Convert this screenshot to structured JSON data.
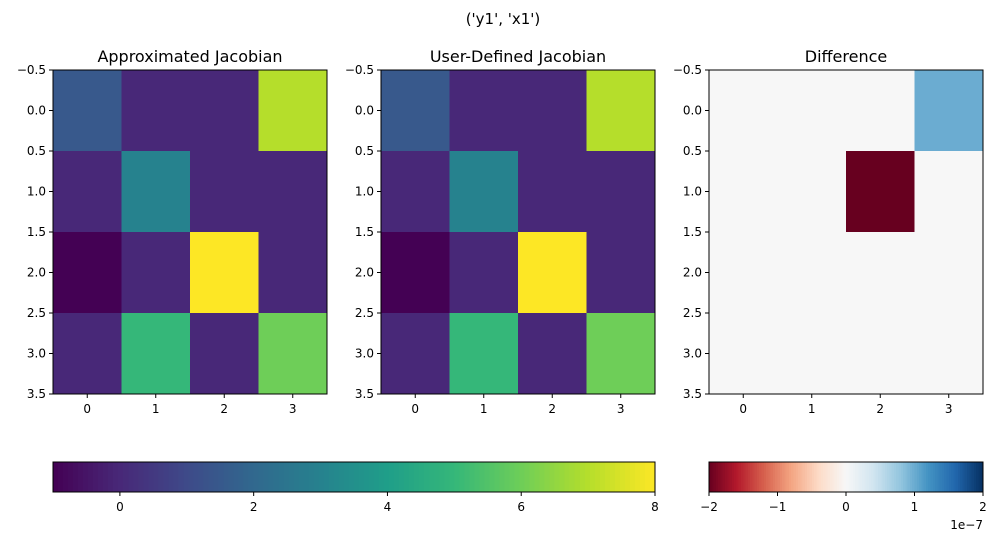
{
  "figure": {
    "suptitle": "('y1', 'x1')"
  },
  "chart_data": [
    {
      "type": "heatmap",
      "title": "Approximated Jacobian",
      "x_ticks": [
        0,
        1,
        2,
        3
      ],
      "y_ticks": [
        -0.5,
        0.0,
        0.5,
        1.0,
        1.5,
        2.0,
        2.5,
        3.0,
        3.5
      ],
      "xlim": [
        -0.5,
        3.5
      ],
      "ylim": [
        3.5,
        -0.5
      ],
      "colormap": "viridis",
      "vmin": -1,
      "vmax": 8,
      "values": [
        [
          1.5,
          0,
          0,
          7.0
        ],
        [
          0,
          3.0,
          0,
          0
        ],
        [
          -1.0,
          0,
          8.0,
          0
        ],
        [
          0,
          5.0,
          0,
          6.0
        ]
      ]
    },
    {
      "type": "heatmap",
      "title": "User-Defined Jacobian",
      "x_ticks": [
        0,
        1,
        2,
        3
      ],
      "y_ticks": [
        -0.5,
        0.0,
        0.5,
        1.0,
        1.5,
        2.0,
        2.5,
        3.0,
        3.5
      ],
      "xlim": [
        -0.5,
        3.5
      ],
      "ylim": [
        3.5,
        -0.5
      ],
      "colormap": "viridis",
      "vmin": -1,
      "vmax": 8,
      "values": [
        [
          1.5,
          0,
          0,
          7.0
        ],
        [
          0,
          3.0,
          0,
          0
        ],
        [
          -1.0,
          0,
          8.0,
          0
        ],
        [
          0,
          5.0,
          0,
          6.0
        ]
      ]
    },
    {
      "type": "heatmap",
      "title": "Difference",
      "x_ticks": [
        0,
        1,
        2,
        3
      ],
      "y_ticks": [
        -0.5,
        0.0,
        0.5,
        1.0,
        1.5,
        2.0,
        2.5,
        3.0,
        3.5
      ],
      "xlim": [
        -0.5,
        3.5
      ],
      "ylim": [
        3.5,
        -0.5
      ],
      "colormap": "RdBu",
      "vmin": -2e-07,
      "vmax": 2e-07,
      "values": [
        [
          0,
          0,
          0,
          1e-07
        ],
        [
          0,
          0,
          -2e-07,
          0
        ],
        [
          0,
          0,
          0,
          0
        ],
        [
          0,
          0,
          0,
          0
        ]
      ]
    }
  ],
  "colorbars": [
    {
      "name": "jacobian-colorbar",
      "colormap": "viridis",
      "vmin": -1,
      "vmax": 8,
      "ticks": [
        0,
        2,
        4,
        6,
        8
      ],
      "tick_labels": [
        "0",
        "2",
        "4",
        "6",
        "8"
      ],
      "offset_label": ""
    },
    {
      "name": "difference-colorbar",
      "colormap": "RdBu",
      "vmin": -2e-07,
      "vmax": 2e-07,
      "ticks": [
        -2e-07,
        -1e-07,
        0,
        1e-07,
        2e-07
      ],
      "tick_labels": [
        "−2",
        "−1",
        "0",
        "1",
        "2"
      ],
      "offset_label": "1e−7"
    }
  ]
}
